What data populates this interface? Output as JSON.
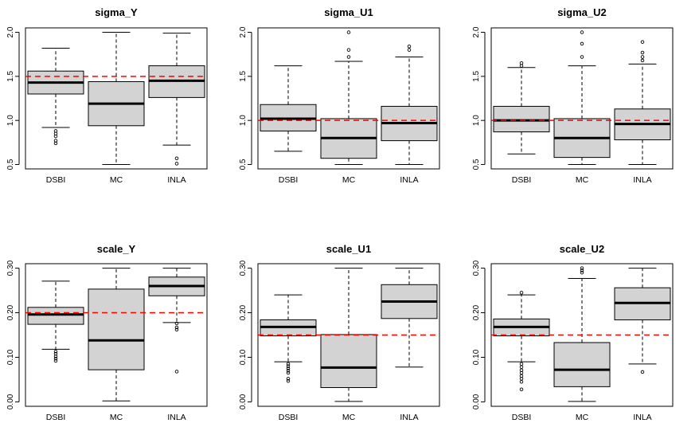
{
  "colors": {
    "box_fill": "#d3d3d3",
    "stroke": "#000000",
    "reference_line": "#ff0000",
    "background": "#ffffff"
  },
  "chart_data": [
    {
      "type": "boxplot",
      "title": "sigma_Y",
      "categories": [
        "DSBI",
        "MC",
        "INLA"
      ],
      "ylim": [
        0.45,
        2.05
      ],
      "yticks": [
        "0.5",
        "1.0",
        "1.5",
        "2.0"
      ],
      "reference_line": 1.5,
      "grid": false,
      "boxes": [
        {
          "whisker_low": 0.92,
          "q1": 1.3,
          "median": 1.43,
          "q3": 1.56,
          "whisker_high": 1.82,
          "outliers": [
            0.74,
            0.77,
            0.82,
            0.85,
            0.88
          ]
        },
        {
          "whisker_low": 0.5,
          "q1": 0.94,
          "median": 1.19,
          "q3": 1.44,
          "whisker_high": 2.0,
          "outliers": []
        },
        {
          "whisker_low": 0.72,
          "q1": 1.26,
          "median": 1.45,
          "q3": 1.62,
          "whisker_high": 1.99,
          "outliers": [
            0.51,
            0.57
          ]
        }
      ]
    },
    {
      "type": "boxplot",
      "title": "sigma_U1",
      "categories": [
        "DSBI",
        "MC",
        "INLA"
      ],
      "ylim": [
        0.45,
        2.05
      ],
      "yticks": [
        "0.5",
        "1.0",
        "1.5",
        "2.0"
      ],
      "reference_line": 1.0,
      "grid": false,
      "boxes": [
        {
          "whisker_low": 0.65,
          "q1": 0.88,
          "median": 1.02,
          "q3": 1.18,
          "whisker_high": 1.62,
          "outliers": []
        },
        {
          "whisker_low": 0.5,
          "q1": 0.57,
          "median": 0.8,
          "q3": 1.02,
          "whisker_high": 1.67,
          "outliers": [
            1.72,
            1.8,
            2.0
          ]
        },
        {
          "whisker_low": 0.5,
          "q1": 0.77,
          "median": 0.97,
          "q3": 1.16,
          "whisker_high": 1.72,
          "outliers": [
            1.8,
            1.84
          ]
        }
      ]
    },
    {
      "type": "boxplot",
      "title": "sigma_U2",
      "categories": [
        "DSBI",
        "MC",
        "INLA"
      ],
      "ylim": [
        0.45,
        2.05
      ],
      "yticks": [
        "0.5",
        "1.0",
        "1.5",
        "2.0"
      ],
      "reference_line": 1.0,
      "grid": false,
      "boxes": [
        {
          "whisker_low": 0.62,
          "q1": 0.87,
          "median": 1.0,
          "q3": 1.16,
          "whisker_high": 1.6,
          "outliers": [
            1.62,
            1.65
          ]
        },
        {
          "whisker_low": 0.5,
          "q1": 0.58,
          "median": 0.8,
          "q3": 1.02,
          "whisker_high": 1.62,
          "outliers": [
            1.72,
            1.87,
            2.0
          ]
        },
        {
          "whisker_low": 0.5,
          "q1": 0.78,
          "median": 0.96,
          "q3": 1.13,
          "whisker_high": 1.64,
          "outliers": [
            1.68,
            1.72,
            1.77,
            1.89
          ]
        }
      ]
    },
    {
      "type": "boxplot",
      "title": "scale_Y",
      "categories": [
        "DSBI",
        "MC",
        "INLA"
      ],
      "ylim": [
        -0.01,
        0.31
      ],
      "yticks": [
        "0.00",
        "0.10",
        "0.20",
        "0.30"
      ],
      "reference_line": 0.2,
      "grid": false,
      "boxes": [
        {
          "whisker_low": 0.118,
          "q1": 0.174,
          "median": 0.196,
          "q3": 0.212,
          "whisker_high": 0.271,
          "outliers": [
            0.092,
            0.097,
            0.102,
            0.108,
            0.113
          ]
        },
        {
          "whisker_low": 0.002,
          "q1": 0.072,
          "median": 0.138,
          "q3": 0.253,
          "whisker_high": 0.3,
          "outliers": []
        },
        {
          "whisker_low": 0.178,
          "q1": 0.238,
          "median": 0.26,
          "q3": 0.28,
          "whisker_high": 0.3,
          "outliers": [
            0.068,
            0.162,
            0.167,
            0.176
          ]
        }
      ]
    },
    {
      "type": "boxplot",
      "title": "scale_U1",
      "categories": [
        "DSBI",
        "MC",
        "INLA"
      ],
      "ylim": [
        -0.01,
        0.31
      ],
      "yticks": [
        "0.00",
        "0.10",
        "0.20",
        "0.30"
      ],
      "reference_line": 0.15,
      "grid": false,
      "boxes": [
        {
          "whisker_low": 0.09,
          "q1": 0.148,
          "median": 0.168,
          "q3": 0.184,
          "whisker_high": 0.24,
          "outliers": [
            0.047,
            0.052,
            0.065,
            0.07,
            0.075,
            0.08,
            0.085
          ]
        },
        {
          "whisker_low": 0.001,
          "q1": 0.032,
          "median": 0.077,
          "q3": 0.151,
          "whisker_high": 0.3,
          "outliers": []
        },
        {
          "whisker_low": 0.078,
          "q1": 0.187,
          "median": 0.225,
          "q3": 0.263,
          "whisker_high": 0.3,
          "outliers": []
        }
      ]
    },
    {
      "type": "boxplot",
      "title": "scale_U2",
      "categories": [
        "DSBI",
        "MC",
        "INLA"
      ],
      "ylim": [
        -0.01,
        0.31
      ],
      "yticks": [
        "0.00",
        "0.10",
        "0.20",
        "0.30"
      ],
      "reference_line": 0.15,
      "grid": false,
      "boxes": [
        {
          "whisker_low": 0.09,
          "q1": 0.148,
          "median": 0.168,
          "q3": 0.186,
          "whisker_high": 0.24,
          "outliers": [
            0.028,
            0.045,
            0.052,
            0.058,
            0.065,
            0.071,
            0.078,
            0.085,
            0.245
          ]
        },
        {
          "whisker_low": 0.001,
          "q1": 0.034,
          "median": 0.072,
          "q3": 0.133,
          "whisker_high": 0.277,
          "outliers": [
            0.29,
            0.295,
            0.3
          ]
        },
        {
          "whisker_low": 0.085,
          "q1": 0.184,
          "median": 0.222,
          "q3": 0.256,
          "whisker_high": 0.3,
          "outliers": [
            0.067
          ]
        }
      ]
    }
  ]
}
